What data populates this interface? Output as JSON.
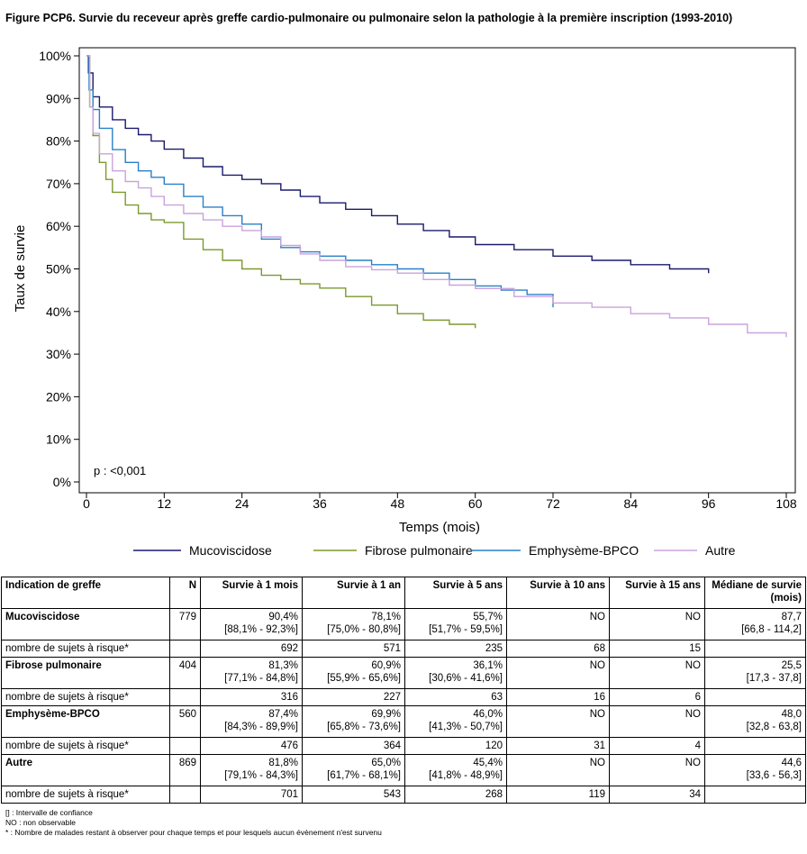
{
  "title": "Figure PCP6. Survie du receveur après greffe cardio-pulmonaire ou pulmonaire selon la pathologie à la première inscription (1993-2010)",
  "chart_data": {
    "type": "line",
    "xlabel": "Temps (mois)",
    "ylabel": "Taux de survie",
    "xlim": [
      0,
      108
    ],
    "ylim": [
      0,
      100
    ],
    "x_ticks": [
      0,
      12,
      24,
      36,
      48,
      60,
      72,
      84,
      96,
      108
    ],
    "y_ticks": [
      0,
      10,
      20,
      30,
      40,
      50,
      60,
      70,
      80,
      90,
      100
    ],
    "y_tick_labels": [
      "0%",
      "10%",
      "20%",
      "30%",
      "40%",
      "50%",
      "60%",
      "70%",
      "80%",
      "90%",
      "100%"
    ],
    "annotation": "p : <0,001",
    "legend_position": "bottom",
    "grid": false,
    "series": [
      {
        "name": "Mucoviscidose",
        "color": "#1a1a6e",
        "x": [
          0,
          0.3,
          1,
          2,
          4,
          6,
          8,
          10,
          12,
          15,
          18,
          21,
          24,
          27,
          30,
          33,
          36,
          40,
          44,
          48,
          52,
          56,
          60,
          66,
          72,
          78,
          84,
          90,
          96
        ],
        "y": [
          100,
          96,
          90.4,
          88,
          85,
          83,
          81.5,
          80,
          78.1,
          76,
          74,
          72,
          71,
          70,
          68.5,
          67,
          65.5,
          64,
          62.5,
          60.5,
          59,
          57.5,
          55.7,
          54.5,
          53,
          52,
          51,
          50,
          49
        ]
      },
      {
        "name": "Fibrose pulmonaire",
        "color": "#7a9a2e",
        "x": [
          0,
          0.5,
          1,
          2,
          3,
          4,
          6,
          8,
          10,
          12,
          15,
          18,
          21,
          24,
          27,
          30,
          33,
          36,
          40,
          44,
          48,
          52,
          56,
          60
        ],
        "y": [
          100,
          88,
          81.3,
          75,
          71,
          68,
          65,
          63,
          61.5,
          60.9,
          57,
          54.5,
          52,
          50,
          48.5,
          47.5,
          46.5,
          45.5,
          43.5,
          41.5,
          39.5,
          38,
          37,
          36.1
        ]
      },
      {
        "name": "Emphysème-BPCO",
        "color": "#2a7fc9",
        "x": [
          0,
          0.4,
          1,
          2,
          4,
          6,
          8,
          10,
          12,
          15,
          18,
          21,
          24,
          27,
          30,
          33,
          36,
          40,
          44,
          48,
          52,
          56,
          60,
          64,
          68,
          72
        ],
        "y": [
          100,
          92,
          87.4,
          83,
          78,
          75,
          73,
          71.5,
          69.9,
          67,
          64.5,
          62.5,
          60.5,
          57,
          55,
          54,
          53,
          52,
          51,
          50,
          49,
          47.5,
          46,
          45,
          44,
          41
        ]
      },
      {
        "name": "Autre",
        "color": "#c9a3dd",
        "x": [
          0,
          0.5,
          1,
          2,
          4,
          6,
          8,
          10,
          12,
          15,
          18,
          21,
          24,
          27,
          30,
          33,
          36,
          40,
          44,
          48,
          52,
          56,
          60,
          66,
          72,
          78,
          84,
          90,
          96,
          102,
          108
        ],
        "y": [
          100,
          88,
          81.8,
          77,
          73,
          70.5,
          69,
          67,
          65,
          63,
          61.5,
          60,
          59,
          57.5,
          55.5,
          53.5,
          52,
          50.5,
          49.8,
          49,
          47.5,
          46.2,
          45.4,
          43.5,
          42,
          41,
          39.5,
          38.5,
          37,
          35,
          34
        ]
      }
    ]
  },
  "table": {
    "headers": [
      "Indication de greffe",
      "N",
      "Survie à 1 mois",
      "Survie à 1 an",
      "Survie à 5 ans",
      "Survie à 10 ans",
      "Survie à 15 ans",
      "Médiane de survie (mois)"
    ],
    "groups": [
      {
        "label": "Mucoviscidose",
        "n": "779",
        "vals": [
          "90,4%",
          "78,1%",
          "55,7%",
          "NO",
          "NO",
          "87,7"
        ],
        "cis": [
          "[88,1% - 92,3%]",
          "[75,0% - 80,8%]",
          "[51,7% - 59,5%]",
          "",
          "",
          "[66,8 - 114,2]"
        ],
        "risk_label": "nombre de sujets à risque*",
        "risk": [
          "692",
          "571",
          "235",
          "68",
          "15",
          ""
        ]
      },
      {
        "label": "Fibrose pulmonaire",
        "n": "404",
        "vals": [
          "81,3%",
          "60,9%",
          "36,1%",
          "NO",
          "NO",
          "25,5"
        ],
        "cis": [
          "[77,1% - 84,8%]",
          "[55,9% - 65,6%]",
          "[30,6% - 41,6%]",
          "",
          "",
          "[17,3 - 37,8]"
        ],
        "risk_label": "nombre de sujets à risque*",
        "risk": [
          "316",
          "227",
          "63",
          "16",
          "6",
          ""
        ]
      },
      {
        "label": "Emphysème-BPCO",
        "n": "560",
        "vals": [
          "87,4%",
          "69,9%",
          "46,0%",
          "NO",
          "NO",
          "48,0"
        ],
        "cis": [
          "[84,3% - 89,9%]",
          "[65,8% - 73,6%]",
          "[41,3% - 50,7%]",
          "",
          "",
          "[32,8 - 63,8]"
        ],
        "risk_label": "nombre de sujets à risque*",
        "risk": [
          "476",
          "364",
          "120",
          "31",
          "4",
          ""
        ]
      },
      {
        "label": "Autre",
        "n": "869",
        "vals": [
          "81,8%",
          "65,0%",
          "45,4%",
          "NO",
          "NO",
          "44,6"
        ],
        "cis": [
          "[79,1% - 84,3%]",
          "[61,7% - 68,1%]",
          "[41,8% - 48,9%]",
          "",
          "",
          "[33,6 - 56,3]"
        ],
        "risk_label": "nombre de sujets à risque*",
        "risk": [
          "701",
          "543",
          "268",
          "119",
          "34",
          ""
        ]
      }
    ]
  },
  "notes": [
    "[] : Intervalle de confiance",
    "NO : non observable",
    "* : Nombre de malades restant à observer pour chaque temps et pour lesquels aucun évènement n'est survenu"
  ]
}
